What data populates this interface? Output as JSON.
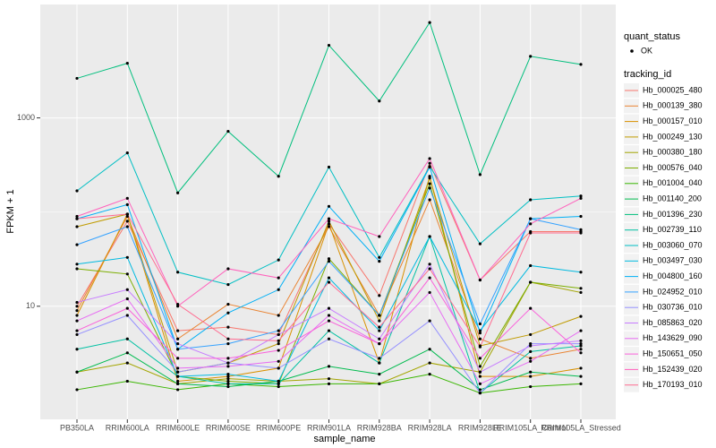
{
  "chart_data": {
    "type": "line",
    "x_label": "sample_name",
    "y_label": "FPKM + 1",
    "log_y": true,
    "grid": true,
    "ylim": [
      0.63,
      16000
    ],
    "yticks": [
      10,
      1000
    ],
    "y_minor_grid": [
      100
    ],
    "legend_position": "right",
    "point_legend_title": "quant_status",
    "point_legend_label": "OK",
    "point_color": "#000000",
    "legend_title": "tracking_id",
    "categories": [
      "PB350LA",
      "RRIM600LA",
      "RRIM600LE",
      "RRIM600SE",
      "RRIM600PE",
      "RRIM901LA",
      "RRIM928BA",
      "RRIM928LA",
      "RRIM928LE",
      "RRIM105LA_Control",
      "RRIM105LA_Stressed"
    ],
    "series": [
      {
        "name": "Hb_000025_480",
        "color": "#F8766D",
        "values": [
          10,
          80,
          5.5,
          6,
          5,
          75,
          13,
          330,
          19,
          62,
          62
        ]
      },
      {
        "name": "Hb_000139_380",
        "color": "#EA8331",
        "values": [
          9,
          90,
          4.5,
          10.5,
          8,
          70,
          8,
          135,
          4.5,
          2.8,
          3.5
        ]
      },
      {
        "name": "Hb_000157_010",
        "color": "#D89000",
        "values": [
          8,
          95,
          1.6,
          1.8,
          2.2,
          75,
          2.5,
          240,
          1.8,
          1.8,
          2.2
        ]
      },
      {
        "name": "Hb_000249_130",
        "color": "#C09B00",
        "values": [
          70,
          95,
          2,
          2.5,
          4,
          80,
          7,
          230,
          3.8,
          5,
          7.8
        ]
      },
      {
        "name": "Hb_000380_180",
        "color": "#A3A500",
        "values": [
          2,
          2.5,
          1.5,
          1.7,
          1.6,
          1.7,
          1.5,
          2.5,
          2,
          18,
          14
        ]
      },
      {
        "name": "Hb_000576_040",
        "color": "#7CAE00",
        "values": [
          25,
          22,
          1.8,
          1.6,
          1.5,
          32,
          8,
          200,
          2.3,
          18,
          15.5
        ]
      },
      {
        "name": "Hb_001004_040",
        "color": "#39B600",
        "values": [
          1.3,
          1.6,
          1.3,
          1.5,
          1.4,
          1.5,
          1.5,
          1.9,
          1.2,
          1.4,
          1.5
        ]
      },
      {
        "name": "Hb_001140_200",
        "color": "#00BB4E",
        "values": [
          2,
          3.2,
          1.5,
          1.4,
          1.6,
          2.3,
          1.9,
          3.5,
          1.3,
          2,
          1.8
        ]
      },
      {
        "name": "Hb_001396_230",
        "color": "#00BF7D",
        "values": [
          2630,
          3800,
          160,
          720,
          240,
          5900,
          1510,
          10300,
          250,
          4500,
          3700
        ]
      },
      {
        "name": "Hb_002739_110",
        "color": "#00C1A3",
        "values": [
          3.5,
          4.5,
          1.8,
          1.5,
          1.5,
          5.5,
          2.5,
          55,
          1.2,
          3.3,
          3.8
        ]
      },
      {
        "name": "Hb_003060_070",
        "color": "#00BFC4",
        "values": [
          168,
          425,
          23,
          17,
          31,
          300,
          33,
          305,
          46,
          135,
          148
        ]
      },
      {
        "name": "Hb_003497_030",
        "color": "#00BAE0",
        "values": [
          28,
          33,
          1.8,
          1.9,
          1.6,
          20,
          5.5,
          55,
          5.5,
          27,
          23
        ]
      },
      {
        "name": "Hb_004800_160",
        "color": "#00B0F6",
        "values": [
          85,
          120,
          3.5,
          8.5,
          15,
          115,
          30,
          300,
          5.2,
          85,
          90
        ]
      },
      {
        "name": "Hb_024952_010",
        "color": "#35A2FF",
        "values": [
          45,
          70,
          3.5,
          4,
          5.5,
          30,
          8,
          180,
          6.5,
          85,
          65
        ]
      },
      {
        "name": "Hb_030736_010",
        "color": "#9590FF",
        "values": [
          5,
          8,
          2,
          2.5,
          2.2,
          4.5,
          2.8,
          7,
          1.2,
          4,
          4
        ]
      },
      {
        "name": "Hb_085863_020",
        "color": "#C77CFF",
        "values": [
          11,
          15,
          4,
          2.5,
          5,
          9.5,
          4.5,
          28,
          2,
          3.8,
          4.3
        ]
      },
      {
        "name": "Hb_143629_090",
        "color": "#E76BF3",
        "values": [
          7,
          12,
          2.2,
          2.3,
          2.6,
          8,
          4,
          14,
          1.5,
          2.6,
          5.5
        ]
      },
      {
        "name": "Hb_150651_050",
        "color": "#FA62DB",
        "values": [
          5.5,
          9.5,
          2.8,
          2.8,
          3.4,
          7,
          4,
          20,
          2.8,
          9.5,
          3.2
        ]
      },
      {
        "name": "Hb_152439_020",
        "color": "#FF62BC",
        "values": [
          90,
          140,
          10,
          25,
          20,
          85,
          55,
          370,
          19,
          75,
          140
        ]
      },
      {
        "name": "Hb_170193_010",
        "color": "#FF6C91",
        "values": [
          85,
          95,
          10.5,
          4.5,
          4.3,
          18,
          6,
          25,
          3.7,
          60,
          60
        ]
      }
    ]
  }
}
